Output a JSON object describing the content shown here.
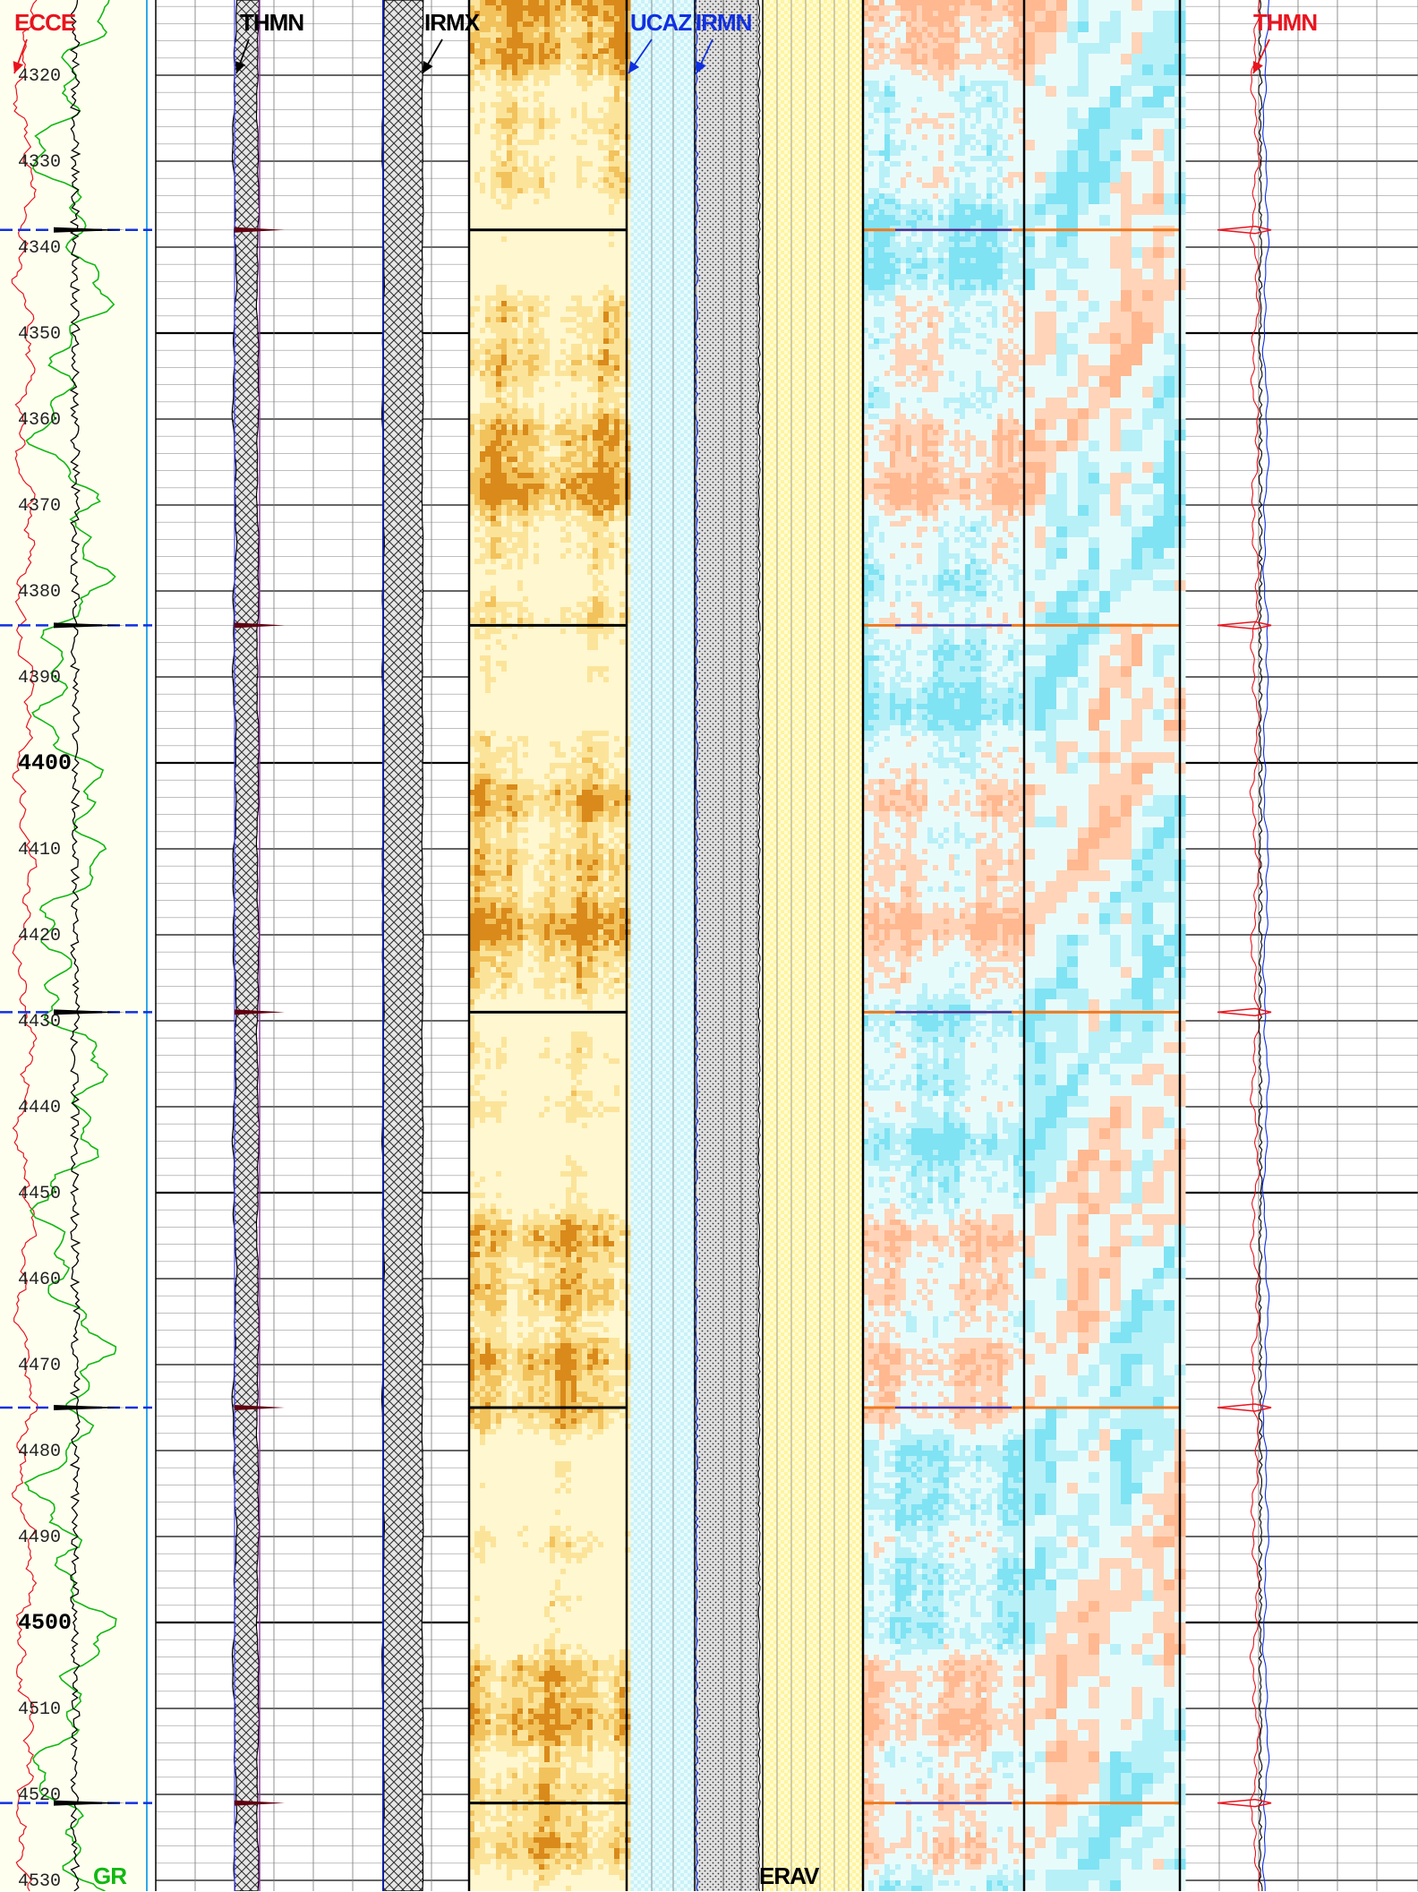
{
  "depth_axis": {
    "min_shown": 4320,
    "max_shown": 4530,
    "labels": [
      "4320",
      "4330",
      "4340",
      "4350",
      "4360",
      "4370",
      "4380",
      "4390",
      "4400",
      "4410",
      "4420",
      "4430",
      "4440",
      "4450",
      "4460",
      "4470",
      "4480",
      "4490",
      "4500",
      "4510",
      "4520",
      "4530"
    ],
    "major_labels": [
      "4400",
      "4500"
    ]
  },
  "curve_labels": {
    "ecce": "ECCE",
    "gr": "GR",
    "thmn_track2": "THMN",
    "irmx": "IRMX",
    "ucaz": "UCAZ",
    "irmn": "IRMN",
    "erav": "ERAV",
    "thmn_track8": "THMN"
  },
  "event_depths": [
    4338,
    4384,
    4429,
    4475,
    4521
  ],
  "colors": {
    "ecce": "#e8141e",
    "gr": "#11b811",
    "thmn_track2": "#000000",
    "irmx": "#000000",
    "ucaz": "#1030e0",
    "irmn": "#1030e0",
    "thmn_track8": "#e8141e",
    "gr_track_bg": "#fffff0",
    "ucaz_fill": "#c8f0f8",
    "erav_fill": "#fffbd0"
  }
}
